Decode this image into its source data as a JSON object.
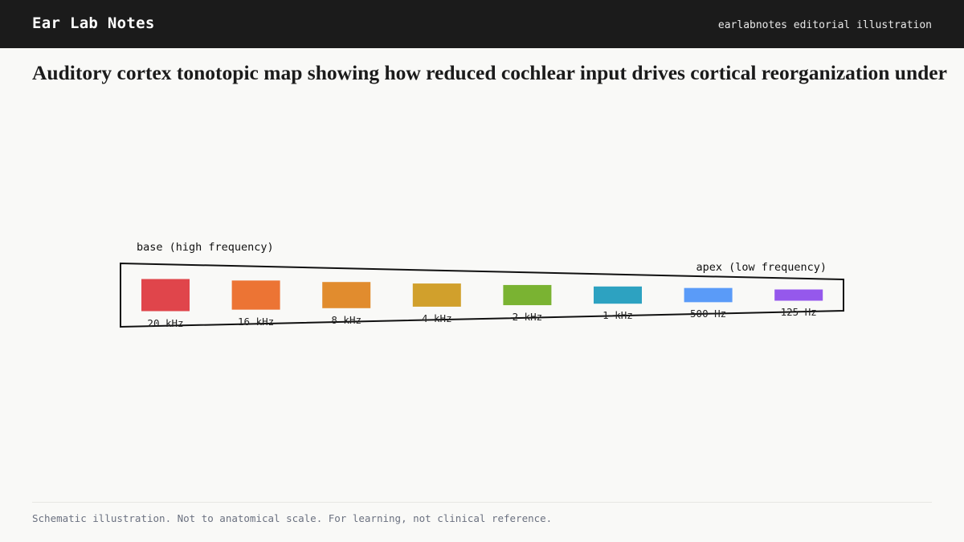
{
  "header": {
    "brand": "Ear Lab Notes",
    "tagline": "earlabnotes editorial illustration"
  },
  "title": "Auditory cortex tonotopic map showing how reduced cochlear input drives cortical reorganization under",
  "diagram": {
    "base_label": "base (high frequency)",
    "apex_label": "apex (low frequency)",
    "bands": [
      {
        "label": "20 kHz",
        "color": "#e0454b"
      },
      {
        "label": "16 kHz",
        "color": "#ec7434"
      },
      {
        "label": "8 kHz",
        "color": "#e18c2e"
      },
      {
        "label": "4 kHz",
        "color": "#d1a02c"
      },
      {
        "label": "2 kHz",
        "color": "#7ab332"
      },
      {
        "label": "1 kHz",
        "color": "#2da2c1"
      },
      {
        "label": "500 Hz",
        "color": "#5a9bf8"
      },
      {
        "label": "125 Hz",
        "color": "#9558ec"
      }
    ],
    "outline_color": "#111111"
  },
  "footer": {
    "note": "Schematic illustration. Not to anatomical scale. For learning, not clinical reference."
  }
}
